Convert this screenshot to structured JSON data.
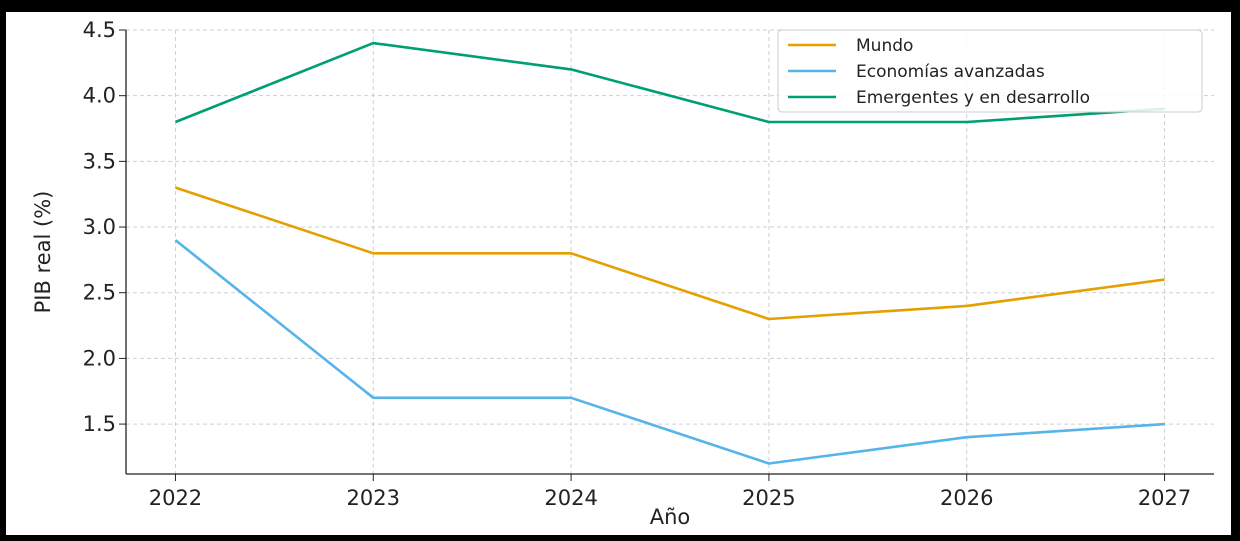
{
  "chart_data": {
    "type": "line",
    "title": "",
    "xlabel": "Año",
    "ylabel": "PIB real (%)",
    "x": [
      2022,
      2023,
      2024,
      2025,
      2026,
      2027
    ],
    "x_tick_labels": [
      "2022",
      "2023",
      "2024",
      "2025",
      "2026",
      "2027"
    ],
    "y_ticks": [
      1.5,
      2.0,
      2.5,
      3.0,
      3.5,
      4.0,
      4.5
    ],
    "y_tick_labels": [
      "1.5",
      "2.0",
      "2.5",
      "3.0",
      "3.5",
      "4.0",
      "4.5"
    ],
    "ylim": [
      1.12,
      4.5
    ],
    "xlim": [
      2021.75,
      2027.25
    ],
    "grid": true,
    "legend_position": "top-right",
    "series": [
      {
        "name": "Mundo",
        "color": "#E69F00",
        "values": [
          3.3,
          2.8,
          2.8,
          2.3,
          2.4,
          2.6
        ]
      },
      {
        "name": "Economías avanzadas",
        "color": "#56B4E9",
        "values": [
          2.9,
          1.7,
          1.7,
          1.2,
          1.4,
          1.5
        ]
      },
      {
        "name": "Emergentes y en desarrollo",
        "color": "#009E73",
        "values": [
          3.8,
          4.4,
          4.2,
          3.8,
          3.8,
          3.9
        ]
      }
    ]
  }
}
